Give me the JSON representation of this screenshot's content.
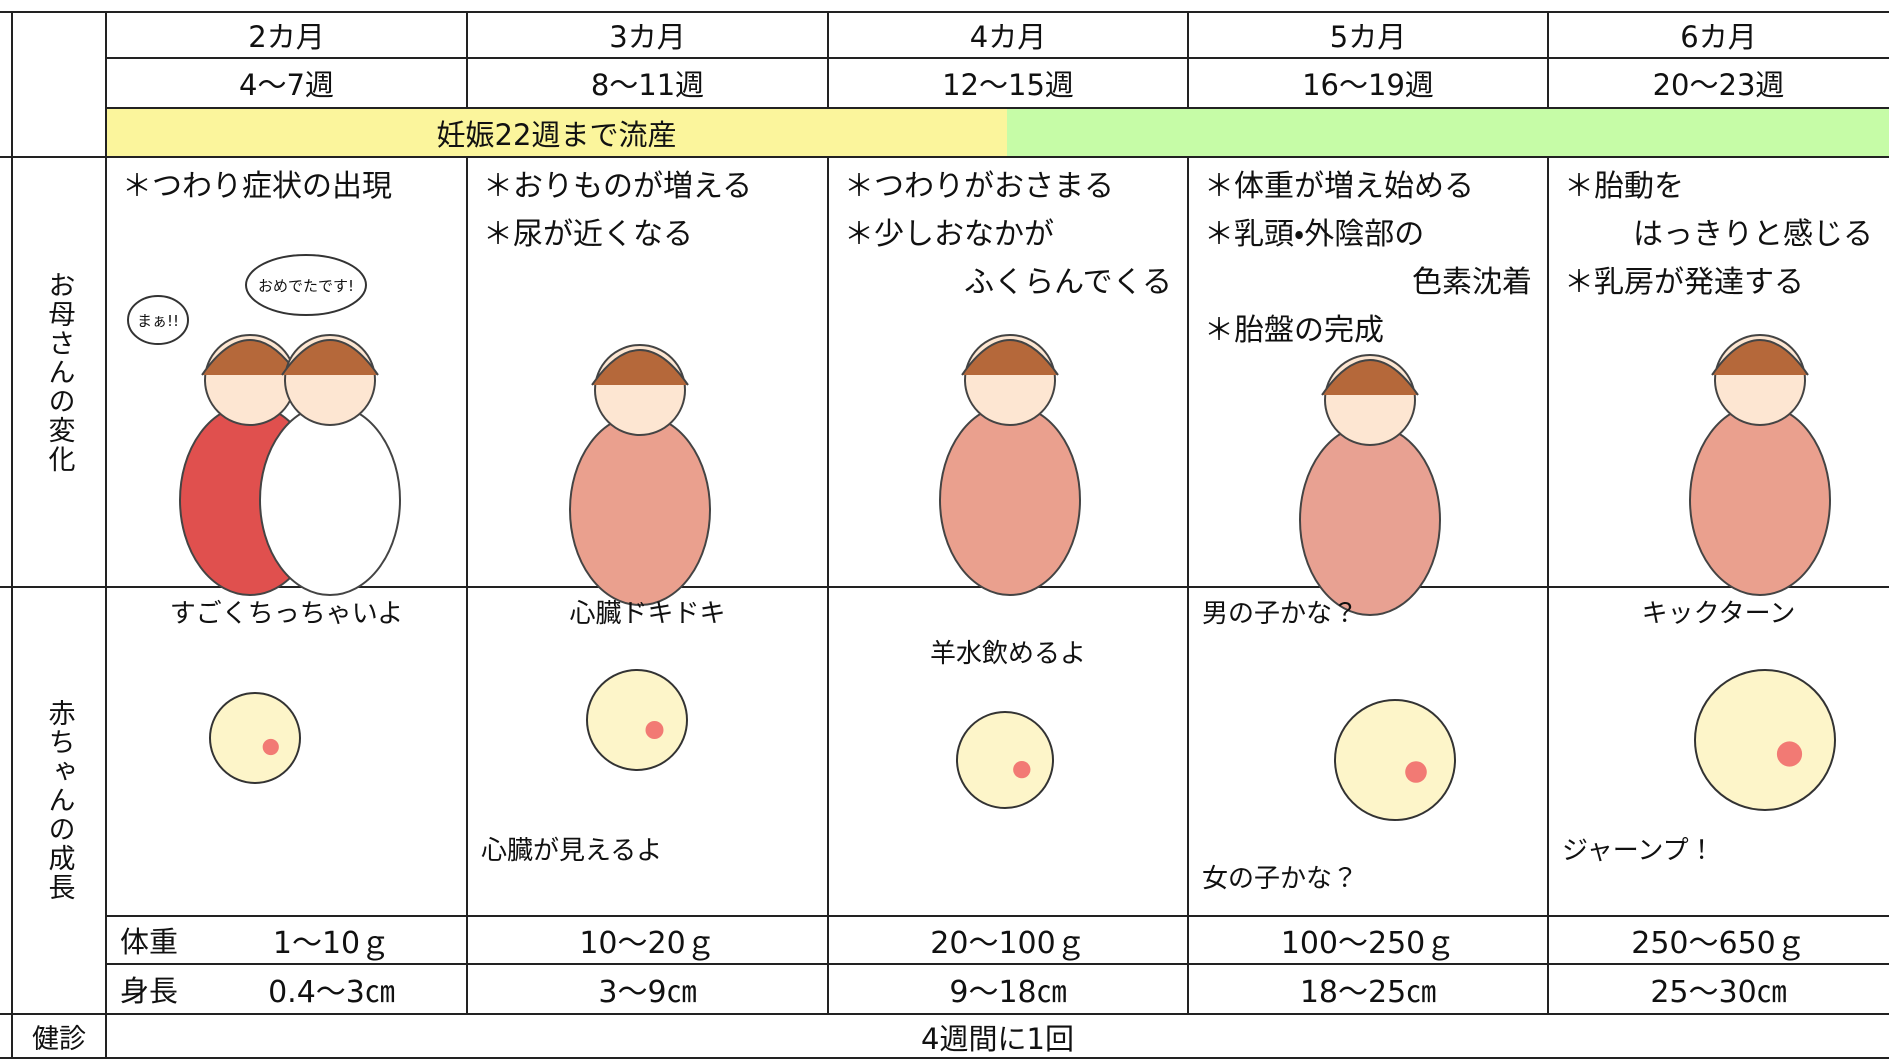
{
  "header": {
    "months": [
      "2カ月",
      "3カ月",
      "4カ月",
      "5カ月",
      "6カ月"
    ],
    "weeks": [
      "4～7週",
      "8～11週",
      "12～15週",
      "16～19週",
      "20～23週"
    ]
  },
  "banner": {
    "text": "妊娠22週まで流産"
  },
  "mother": {
    "label": "お母さんの変化",
    "cells": [
      [
        "＊つわり症状の出現"
      ],
      [
        "＊おりものが増える",
        "＊尿が近くなる"
      ],
      [
        "＊つわりがおさまる",
        "＊少しおなかが",
        "ふくらんでくる"
      ],
      [
        "＊体重が増え始める",
        "＊乳頭・外陰部の",
        "色素沈着",
        "＊胎盤の完成"
      ],
      [
        "＊胎動を",
        "はっきりと感じる",
        "＊乳房が発達する"
      ]
    ],
    "bubbles": [
      "まぁ!!",
      "おめでたです!"
    ]
  },
  "baby": {
    "label": "赤ちゃんの成長",
    "cells": [
      {
        "top": "すごくちっちゃいよ"
      },
      {
        "top": "心臓ドキドキ",
        "bottom": "心臓が見えるよ"
      },
      {
        "top": "羊水飲めるよ"
      },
      {
        "top": "男の子かな？",
        "bottom": "女の子かな？"
      },
      {
        "top": "キックターン",
        "bottom": "ジャーンプ！"
      }
    ]
  },
  "weight": {
    "label": "体重",
    "values": [
      "1～10ｇ",
      "10～20ｇ",
      "20～100ｇ",
      "100～250ｇ",
      "250～650ｇ"
    ]
  },
  "height": {
    "label": "身長",
    "values": [
      "0.4～3㎝",
      "3～9㎝",
      "9～18㎝",
      "18～25㎝",
      "25～30㎝"
    ]
  },
  "checkup": {
    "label": "健診",
    "text": "4週間に1回"
  }
}
